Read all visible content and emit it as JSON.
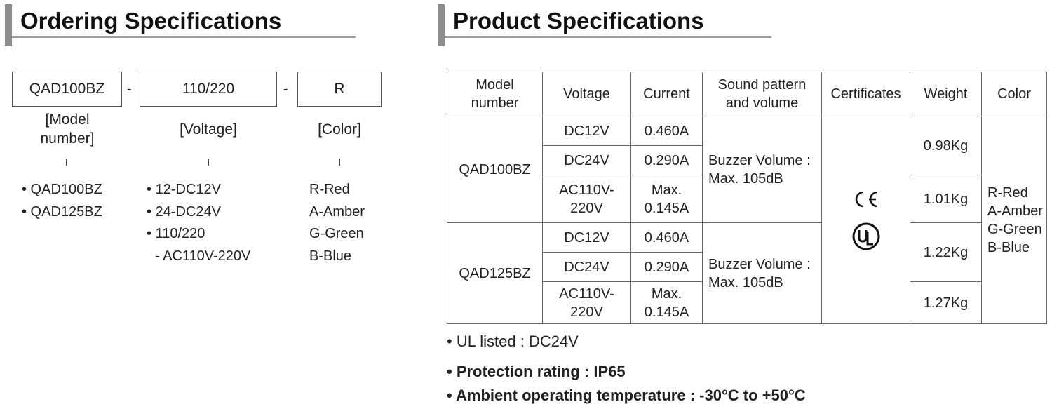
{
  "ordering": {
    "title": "Ordering Specifications",
    "code": [
      "QAD100BZ",
      "110/220",
      "R"
    ],
    "separator": "-",
    "labels": [
      "[Model number]",
      "[Voltage]",
      "[Color]"
    ],
    "models": [
      "• QAD100BZ",
      "• QAD125BZ"
    ],
    "voltages": [
      "• 12-DC12V",
      "• 24-DC24V",
      "• 110/220",
      "- AC110V-220V"
    ],
    "colors": [
      "R-Red",
      "A-Amber",
      "G-Green",
      "B-Blue"
    ]
  },
  "product": {
    "title": "Product Specifications",
    "headers": [
      "Model number",
      "Voltage",
      "Current",
      "Sound pattern and volume",
      "Certificates",
      "Weight",
      "Color"
    ],
    "rows": [
      {
        "model": "QAD100BZ",
        "sound": "Buzzer Volume : Max. 105dB",
        "variants": [
          {
            "voltage": "DC12V",
            "current": "0.460A",
            "weight": "0.98Kg"
          },
          {
            "voltage": "DC24V",
            "current": "0.290A"
          },
          {
            "voltage": "AC110V-220V",
            "current": "Max. 0.145A",
            "weight": "1.01Kg"
          }
        ]
      },
      {
        "model": "QAD125BZ",
        "sound": "Buzzer Volume : Max. 105dB",
        "variants": [
          {
            "voltage": "DC12V",
            "current": "0.460A",
            "weight": "1.22Kg"
          },
          {
            "voltage": "DC24V",
            "current": "0.290A"
          },
          {
            "voltage": "AC110V-220V",
            "current": "Max. 0.145A",
            "weight": "1.27Kg"
          }
        ]
      }
    ],
    "certificates": [
      "CE",
      "UL"
    ],
    "color_list": [
      "R-Red",
      "A-Amber",
      "G-Green",
      "B-Blue"
    ],
    "notes": [
      "• UL listed : DC24V",
      "• Protection rating : IP65",
      "• Ambient operating temperature : -30°C to +50°C"
    ]
  }
}
